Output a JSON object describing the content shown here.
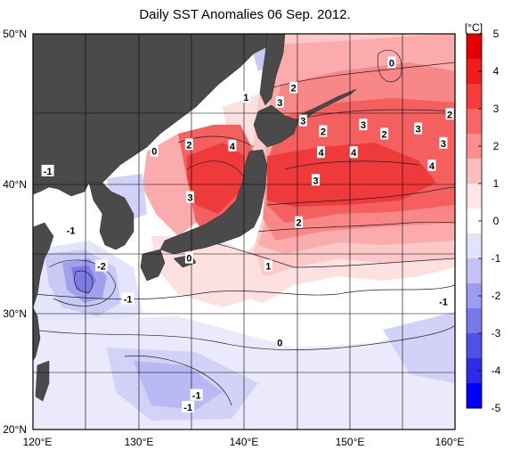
{
  "title": "Daily SST Anomalies 06 Sep. 2012.",
  "map": {
    "lat_labels": [
      "50°N",
      "40°N",
      "30°N",
      "20°N"
    ],
    "lon_labels": [
      "120°E",
      "130°E",
      "140°E",
      "150°E",
      "160°E"
    ],
    "lon_range": [
      120,
      160
    ],
    "lat_range": [
      20,
      50
    ],
    "land_color": "#4a4a4a",
    "contour_labels": [
      {
        "text": "0",
        "lon": 154,
        "lat": 47.8
      },
      {
        "text": "2",
        "lon": 144.7,
        "lat": 45.9
      },
      {
        "text": "1",
        "lon": 140.2,
        "lat": 45.2
      },
      {
        "text": "3",
        "lon": 143.4,
        "lat": 44.8
      },
      {
        "text": "3",
        "lon": 145.6,
        "lat": 43.4
      },
      {
        "text": "2",
        "lon": 147.5,
        "lat": 42.6
      },
      {
        "text": "3",
        "lon": 151.3,
        "lat": 43.1
      },
      {
        "text": "2",
        "lon": 153.3,
        "lat": 42.4
      },
      {
        "text": "3",
        "lon": 156.5,
        "lat": 42.8
      },
      {
        "text": "2",
        "lon": 159.5,
        "lat": 43.9
      },
      {
        "text": "3",
        "lon": 158.9,
        "lat": 41.7
      },
      {
        "text": "0",
        "lon": 131.5,
        "lat": 41.1
      },
      {
        "text": "2",
        "lon": 134.8,
        "lat": 41.6
      },
      {
        "text": "4",
        "lon": 138.9,
        "lat": 41.5
      },
      {
        "text": "4",
        "lon": 147.3,
        "lat": 41.0
      },
      {
        "text": "4",
        "lon": 150.4,
        "lat": 41.0
      },
      {
        "text": "4",
        "lon": 157.8,
        "lat": 40.0
      },
      {
        "text": "-1",
        "lon": 121.4,
        "lat": 39.6
      },
      {
        "text": "3",
        "lon": 146.8,
        "lat": 38.9
      },
      {
        "text": "3",
        "lon": 134.9,
        "lat": 37.6
      },
      {
        "text": "2",
        "lon": 145.2,
        "lat": 35.7
      },
      {
        "text": "-1",
        "lon": 123.6,
        "lat": 35.1
      },
      {
        "text": "0",
        "lon": 134.8,
        "lat": 33.0
      },
      {
        "text": "1",
        "lon": 142.3,
        "lat": 32.4
      },
      {
        "text": "-2",
        "lon": 126.5,
        "lat": 32.4
      },
      {
        "text": "-1",
        "lon": 129.0,
        "lat": 29.9
      },
      {
        "text": "-1",
        "lon": 158.9,
        "lat": 29.7
      },
      {
        "text": "0",
        "lon": 143.4,
        "lat": 26.6
      },
      {
        "text": "-1",
        "lon": 135.5,
        "lat": 22.6
      },
      {
        "text": "-1",
        "lon": 134.7,
        "lat": 21.7
      }
    ]
  },
  "colorbar": {
    "unit": "[°C]",
    "ticks": [
      "5",
      "4",
      "3",
      "2",
      "1",
      "0",
      "-1",
      "-2",
      "-3",
      "-4",
      "-5"
    ],
    "colors": [
      "#e60000",
      "#f01c1c",
      "#f53b3b",
      "#f96464",
      "#fc8e8e",
      "#fdbcbc",
      "#ffe6e6",
      "#ffffff",
      "#e2e2fc",
      "#c2c2f6",
      "#9c9cf0",
      "#7878ea",
      "#5050e6",
      "#2c2ce8",
      "#0000ff"
    ]
  }
}
